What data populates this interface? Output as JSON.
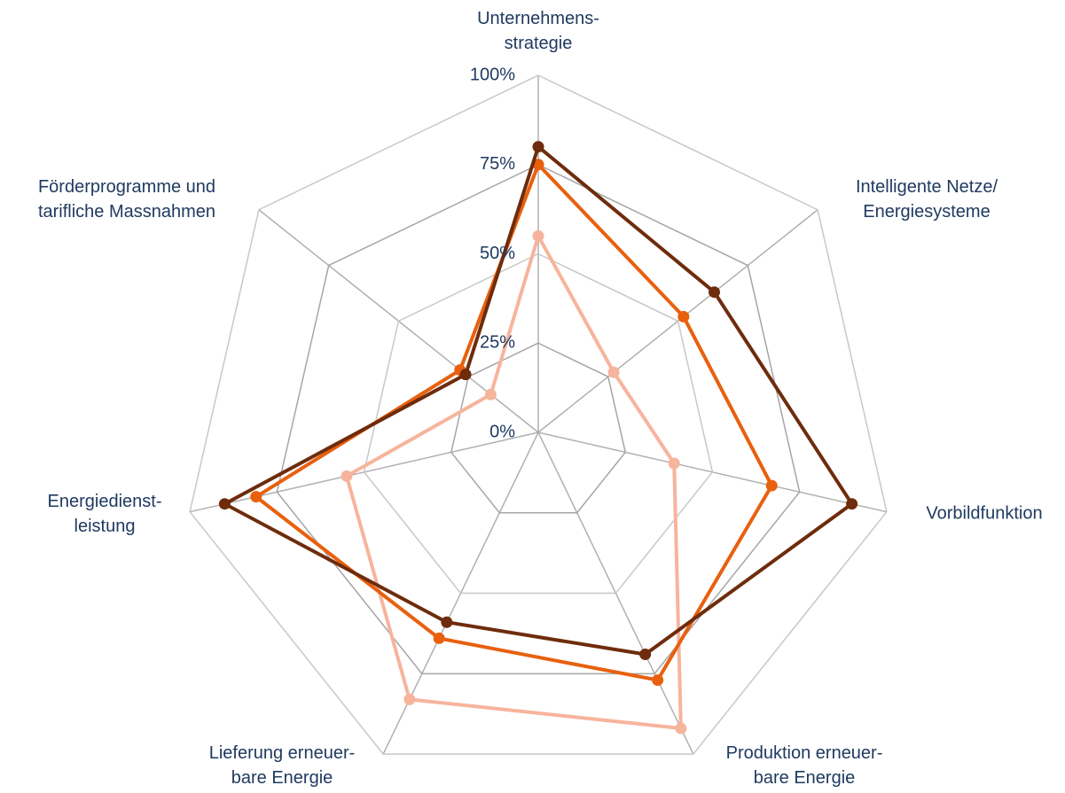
{
  "chart_data": {
    "type": "radar",
    "categories": [
      "Unternehmens-\nstrategie",
      "Intelligente Netze/\nEnergiesysteme",
      "Vorbildfunktion",
      "Produktion erneuer-\nbare Energie",
      "Lieferung erneuer-\nbare Energie",
      "Energiedienst-\nleistung",
      "Förderprogramme und\ntarifliche Massnahmen"
    ],
    "series": [
      {
        "color": "#f7b49c",
        "values": [
          55,
          27,
          39,
          92,
          83,
          55,
          17
        ]
      },
      {
        "color": "#e8600e",
        "values": [
          75,
          52,
          67,
          77,
          64,
          81,
          28
        ]
      },
      {
        "color": "#6e2c0c",
        "values": [
          80,
          63,
          90,
          69,
          59,
          90,
          26
        ]
      }
    ],
    "ylim": [
      0,
      100
    ],
    "yticks": [
      {
        "value": 0,
        "label": "0%"
      },
      {
        "value": 25,
        "label": "25%"
      },
      {
        "value": 50,
        "label": "50%"
      },
      {
        "value": 75,
        "label": "75%"
      },
      {
        "value": 100,
        "label": "100%"
      }
    ],
    "grid": true
  }
}
